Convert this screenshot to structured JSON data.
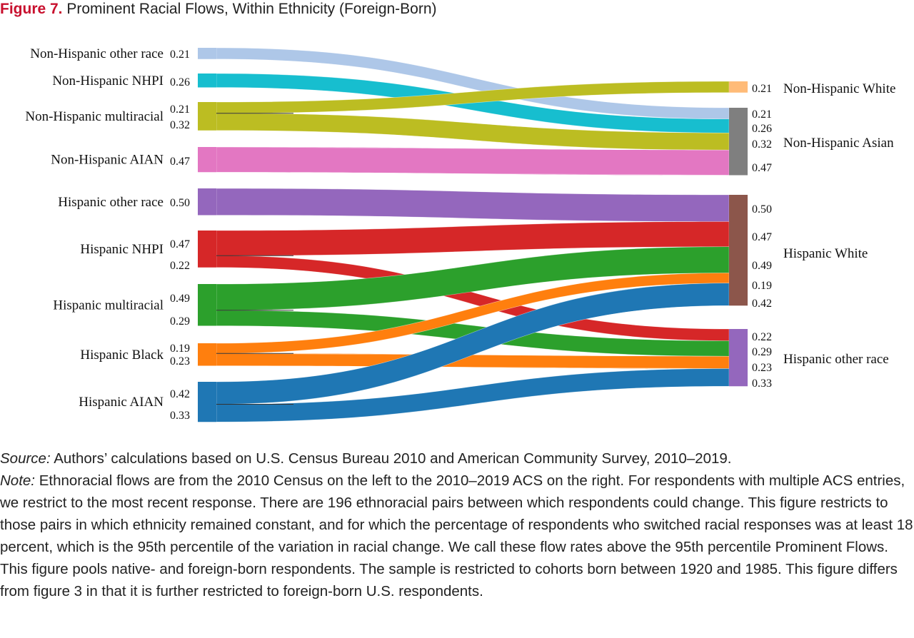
{
  "title": {
    "label": "Figure 7.",
    "text": " Prominent Racial Flows, Within Ethnicity (Foreign-Born)"
  },
  "chart_data": {
    "type": "sankey",
    "left_nodes": [
      "Non-Hispanic other race",
      "Non-Hispanic NHPI",
      "Non-Hispanic multiracial",
      "Non-Hispanic AIAN",
      "Hispanic other race",
      "Hispanic NHPI",
      "Hispanic multiracial",
      "Hispanic Black",
      "Hispanic AIAN"
    ],
    "right_nodes": [
      "Non-Hispanic White",
      "Non-Hispanic Asian",
      "Hispanic White",
      "Hispanic other race"
    ],
    "node_colors": {
      "Non-Hispanic other race": "#aec7e8",
      "Non-Hispanic NHPI": "#17becf",
      "Non-Hispanic multiracial": "#bcbd22",
      "Non-Hispanic AIAN": "#e377c2",
      "Hispanic other race": "#9467bd",
      "Hispanic NHPI": "#d62728",
      "Hispanic multiracial": "#2ca02c",
      "Hispanic Black": "#ff7f0e",
      "Hispanic AIAN": "#1f77b4",
      "Non-Hispanic White": "#ffbb78",
      "Non-Hispanic Asian": "#7f7f7f",
      "Hispanic White": "#8c564b",
      "Hispanic other race (destination)": "#9467bd"
    },
    "flows": [
      {
        "source": "Non-Hispanic other race",
        "target": "Non-Hispanic Asian",
        "value": 0.21,
        "label": "0.21"
      },
      {
        "source": "Non-Hispanic NHPI",
        "target": "Non-Hispanic Asian",
        "value": 0.26,
        "label": "0.26"
      },
      {
        "source": "Non-Hispanic multiracial",
        "target": "Non-Hispanic White",
        "value": 0.21,
        "label": "0.21"
      },
      {
        "source": "Non-Hispanic multiracial",
        "target": "Non-Hispanic Asian",
        "value": 0.32,
        "label": "0.32"
      },
      {
        "source": "Non-Hispanic AIAN",
        "target": "Non-Hispanic Asian",
        "value": 0.47,
        "label": "0.47"
      },
      {
        "source": "Hispanic other race",
        "target": "Hispanic White",
        "value": 0.5,
        "label": "0.50"
      },
      {
        "source": "Hispanic NHPI",
        "target": "Hispanic White",
        "value": 0.47,
        "label": "0.47"
      },
      {
        "source": "Hispanic NHPI",
        "target": "Hispanic other race",
        "value": 0.22,
        "label": "0.22"
      },
      {
        "source": "Hispanic multiracial",
        "target": "Hispanic White",
        "value": 0.49,
        "label": "0.49"
      },
      {
        "source": "Hispanic multiracial",
        "target": "Hispanic other race",
        "value": 0.29,
        "label": "0.29"
      },
      {
        "source": "Hispanic Black",
        "target": "Hispanic White",
        "value": 0.19,
        "label": "0.19"
      },
      {
        "source": "Hispanic Black",
        "target": "Hispanic other race",
        "value": 0.23,
        "label": "0.23"
      },
      {
        "source": "Hispanic AIAN",
        "target": "Hispanic White",
        "value": 0.42,
        "label": "0.42"
      },
      {
        "source": "Hispanic AIAN",
        "target": "Hispanic other race",
        "value": 0.33,
        "label": "0.33"
      }
    ]
  },
  "notes": {
    "source_label": "Source:",
    "source_text": " Authors’ calculations based on U.S. Census Bureau 2010 and American Community Survey, 2010–2019.",
    "note_label": "Note:",
    "note_text": " Ethnoracial flows are from the 2010 Census on the left to the 2010–2019 ACS on the right. For respondents with multiple ACS entries, we restrict to the most recent response. There are 196 ethnoracial pairs between which respondents could change. This figure restricts to those pairs in which ethnicity remained constant, and for which the percentage of respondents who switched racial responses was at least 18 percent, which is the 95th percentile of the variation in racial change. We call these flow rates above the 95th percentile Prominent Flows. This figure pools native- and foreign-born respondents. The sample is restricted to cohorts born between 1920 and 1985. This figure differs from figure 3 in that it is further restricted to foreign-born U.S. respondents."
  }
}
